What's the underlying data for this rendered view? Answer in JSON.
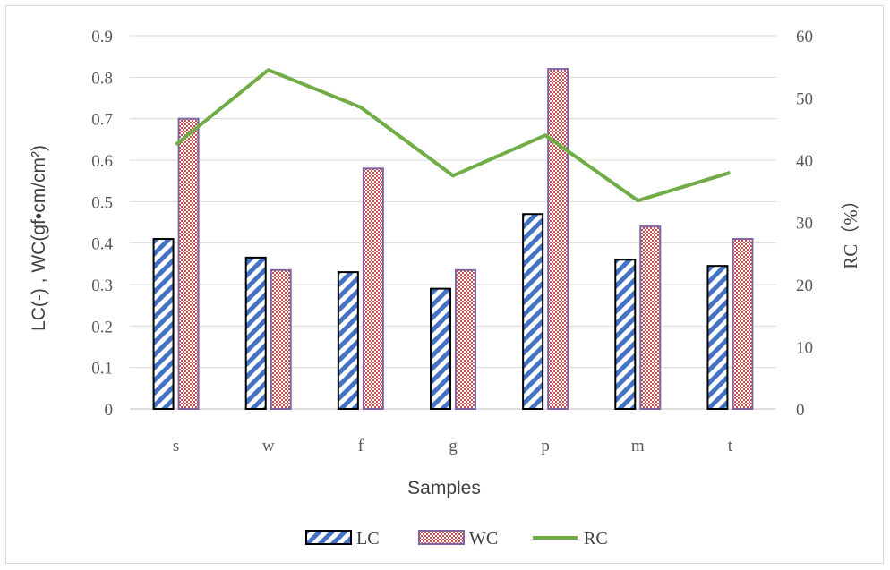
{
  "chart_data": {
    "type": "bar",
    "categories": [
      "s",
      "w",
      "f",
      "g",
      "p",
      "m",
      "t"
    ],
    "series": [
      {
        "name": "LC",
        "type": "bar",
        "axis": "left",
        "pattern": "diagonal-stripes",
        "color": "#4472c4",
        "border": "#000000",
        "values": [
          0.41,
          0.365,
          0.33,
          0.29,
          0.47,
          0.36,
          0.345
        ]
      },
      {
        "name": "WC",
        "type": "bar",
        "axis": "left",
        "pattern": "checker",
        "color": "#c0504d",
        "border": "#8064a2",
        "values": [
          0.7,
          0.335,
          0.58,
          0.335,
          0.82,
          0.44,
          0.41
        ]
      },
      {
        "name": "RC",
        "type": "line",
        "axis": "right",
        "color": "#70ad47",
        "values": [
          42.5,
          54.5,
          48.5,
          37.5,
          44,
          33.5,
          38
        ]
      }
    ],
    "xlabel": "Samples",
    "ylabel": "LC(-) , WC(gf•cm/cm²)",
    "y2label": "RC（%）",
    "ylim": [
      0,
      0.9
    ],
    "y2lim": [
      0,
      60
    ],
    "yticks": [
      "0",
      "0.1",
      "0.2",
      "0.3",
      "0.4",
      "0.5",
      "0.6",
      "0.7",
      "0.8",
      "0.9"
    ],
    "y2ticks": [
      "0",
      "10",
      "20",
      "30",
      "40",
      "50",
      "60"
    ],
    "grid": true,
    "legend_position": "bottom"
  }
}
